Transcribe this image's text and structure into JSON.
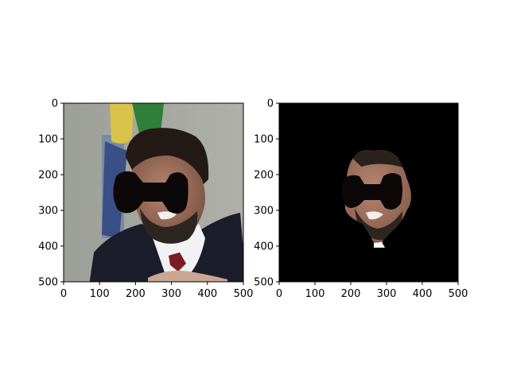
{
  "chart_data": [
    {
      "type": "image",
      "title": "",
      "xlabel": "",
      "ylabel": "",
      "xlim": [
        0,
        500
      ],
      "ylim": [
        500,
        0
      ],
      "x_ticks": [
        0,
        100,
        200,
        300,
        400,
        500
      ],
      "y_ticks": [
        0,
        100,
        200,
        300,
        400,
        500
      ],
      "grid": false,
      "content": "portrait-photo"
    },
    {
      "type": "image",
      "title": "",
      "xlabel": "",
      "ylabel": "",
      "xlim": [
        0,
        500
      ],
      "ylim": [
        500,
        0
      ],
      "x_ticks": [
        0,
        100,
        200,
        300,
        400,
        500
      ],
      "y_ticks": [
        0,
        100,
        200,
        300,
        400,
        500
      ],
      "grid": false,
      "content": "face-segmentation-mask"
    }
  ],
  "colors": {
    "mask_background": "#000000",
    "bowtie_occluder": "#0c0808",
    "photo_background": "#a2a49d",
    "suit": "#1c1d2b",
    "shirt": "#f2f2f4",
    "tie": "#7c1c20",
    "hair": "#231a16",
    "skin": "#9c6f5a"
  }
}
